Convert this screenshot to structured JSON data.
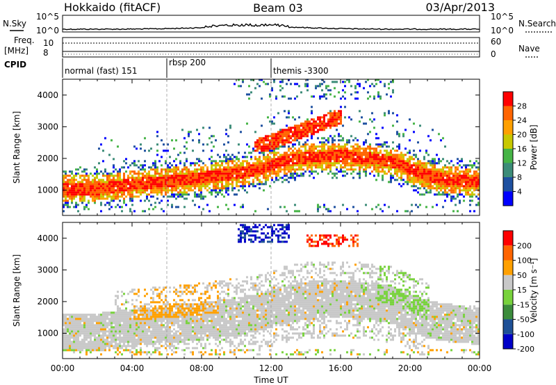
{
  "header": {
    "station": "Hokkaido (fitACF)",
    "beam": "Beam 03",
    "date": "03/Apr/2013"
  },
  "noise_panel": {
    "left_label": "N.Sky",
    "right_label": "N.Search",
    "left_ticks": [
      "10^5",
      "10^0"
    ],
    "right_ticks": [
      "10^5",
      "10^0"
    ]
  },
  "freq_panel": {
    "left_label_1": "Freq.",
    "left_label_2": "[MHz]",
    "right_label": "Nave",
    "left_ticks": [
      "10",
      "8"
    ],
    "right_ticks": [
      "60",
      "0"
    ]
  },
  "cpid": {
    "label": "CPID",
    "segments": [
      {
        "label": "normal (fast) 151",
        "start_hour": 0,
        "end_hour": 6
      },
      {
        "label": "rbsp 200",
        "start_hour": 6,
        "end_hour": 12
      },
      {
        "label": "themis -3300",
        "start_hour": 12,
        "end_hour": 24
      }
    ]
  },
  "chart_data": [
    {
      "type": "heatmap",
      "name": "power",
      "ylabel": "Slant Range [km]",
      "xlabel": "",
      "xlim": [
        0,
        24
      ],
      "ylim": [
        200,
        4500
      ],
      "yticks": [
        "1000",
        "2000",
        "3000",
        "4000"
      ],
      "colorbar": {
        "label": "Power [dB]",
        "ticks": [
          "4",
          "8",
          "12",
          "16",
          "20",
          "24",
          "28"
        ],
        "colors": [
          "#0000ff",
          "#1e50a0",
          "#3c8c78",
          "#46b446",
          "#c8c800",
          "#ffa000",
          "#ff6400",
          "#ff0000"
        ]
      },
      "bands": [
        {
          "x": [
            0,
            2,
            4,
            6,
            8,
            10,
            11.5,
            12.5,
            14,
            16,
            17,
            18,
            19,
            20,
            21,
            22,
            24
          ],
          "y": [
            1000,
            1000,
            1150,
            1250,
            1350,
            1500,
            1650,
            1850,
            2000,
            2050,
            2000,
            1950,
            1850,
            1600,
            1400,
            1300,
            1200
          ]
        }
      ]
    },
    {
      "type": "heatmap",
      "name": "velocity",
      "ylabel": "Slant Range [km]",
      "xlabel": "Time UT",
      "xlim": [
        0,
        24
      ],
      "ylim": [
        200,
        4500
      ],
      "xticks": [
        "00:00",
        "04:00",
        "08:00",
        "12:00",
        "16:00",
        "20:00",
        "00:00"
      ],
      "yticks": [
        "1000",
        "2000",
        "3000",
        "4000"
      ],
      "colorbar": {
        "label": "Velocity [m s⁻¹]",
        "ticks": [
          "200",
          "100",
          "50",
          "15",
          "-15",
          "-50",
          "-100",
          "-200"
        ],
        "colors": [
          "#0000c8",
          "#1e5096",
          "#3c8c3c",
          "#78d23c",
          "#c8c8c8",
          "#ffa000",
          "#ff6400",
          "#ff0000"
        ]
      }
    }
  ]
}
